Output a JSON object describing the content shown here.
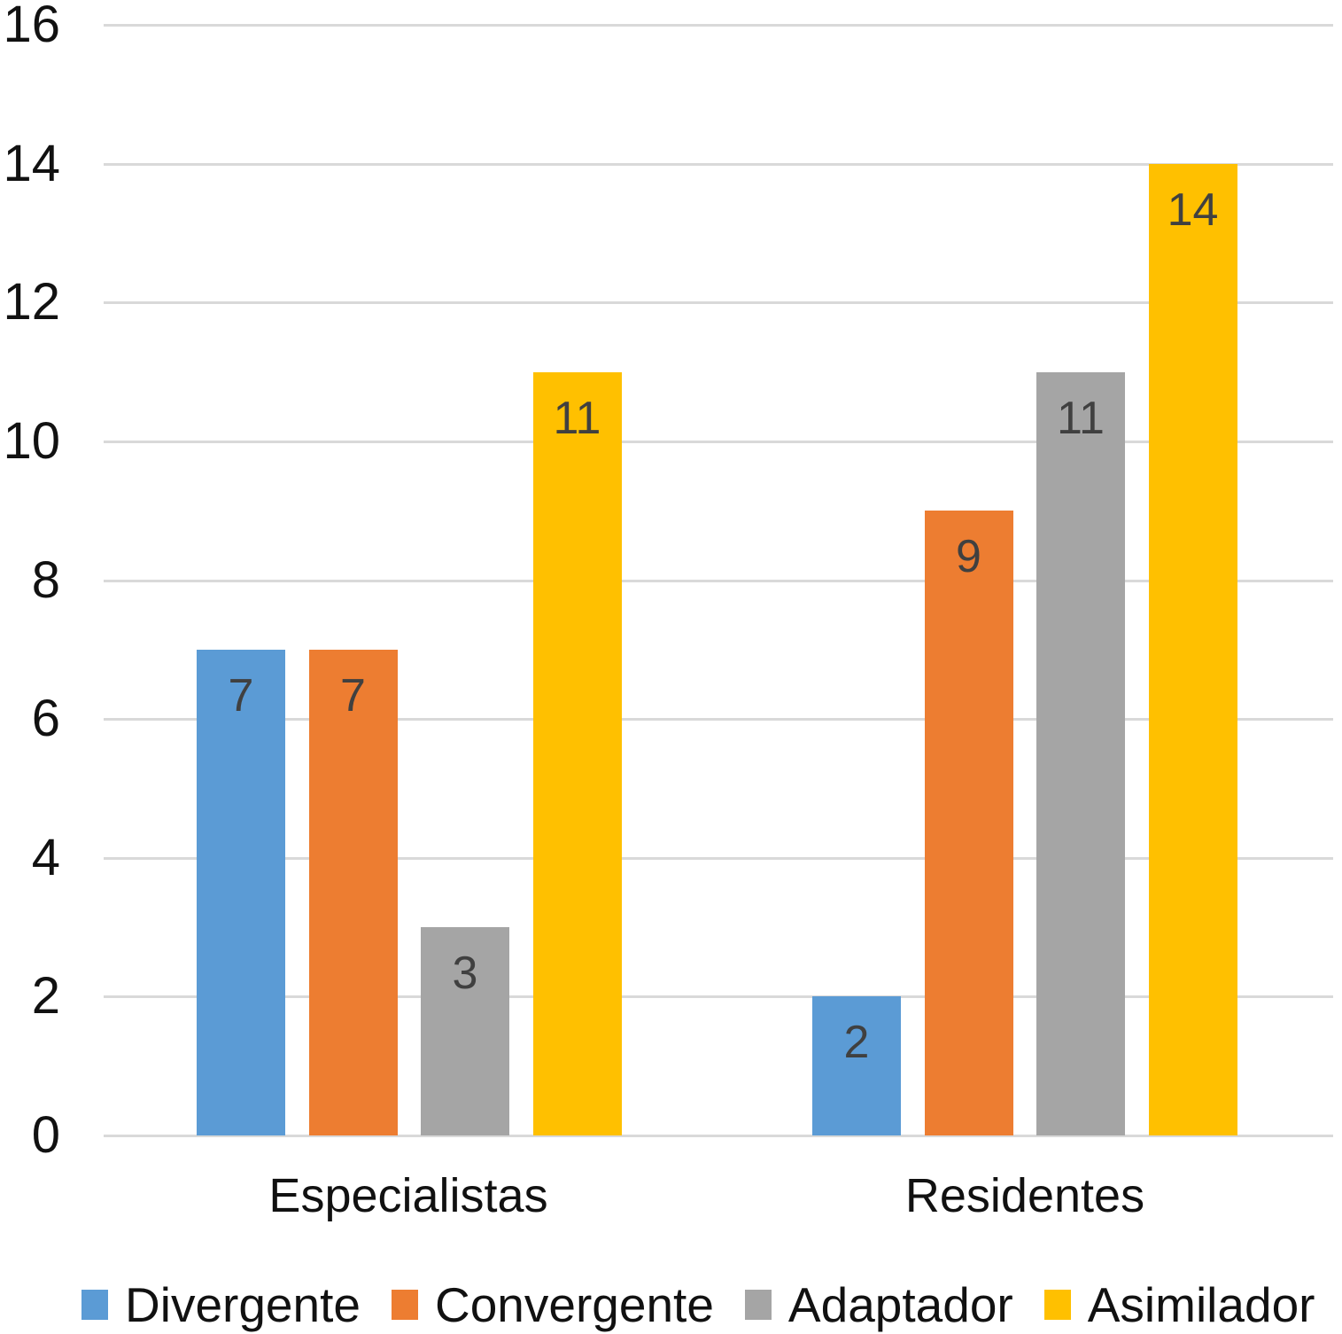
{
  "chart_data": {
    "type": "bar",
    "title": "",
    "categories": [
      "Especialistas",
      "Residentes"
    ],
    "series": [
      {
        "name": "Divergente",
        "color": "#5B9BD5",
        "values": [
          7,
          2
        ]
      },
      {
        "name": "Convergente",
        "color": "#ED7D31",
        "values": [
          7,
          9
        ]
      },
      {
        "name": "Adaptador",
        "color": "#A5A5A5",
        "values": [
          3,
          11
        ]
      },
      {
        "name": "Asimilador",
        "color": "#FFC000",
        "values": [
          11,
          14
        ]
      }
    ],
    "ylim": [
      0,
      16
    ],
    "yticks": [
      0,
      2,
      4,
      6,
      8,
      10,
      12,
      14,
      16
    ],
    "grid": true,
    "legend_position": "bottom",
    "data_labels": true,
    "data_label_color": "#404040",
    "gridline_color": "#D9D9D9",
    "axis_text_color": "#111111"
  }
}
